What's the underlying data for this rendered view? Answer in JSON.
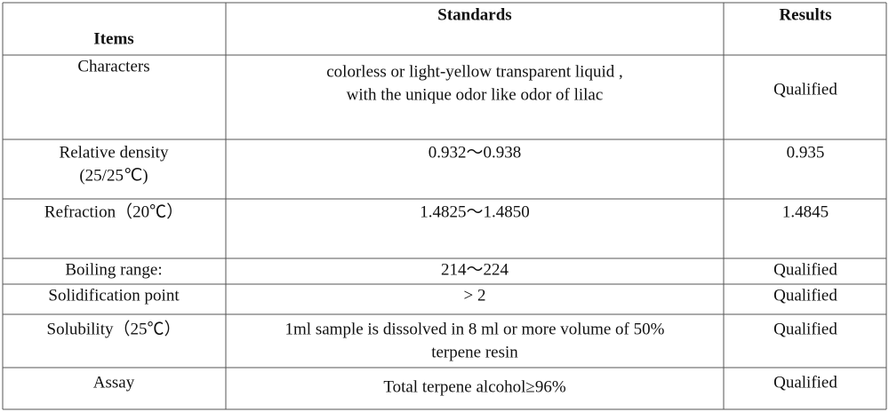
{
  "table": {
    "headers": [
      "Items",
      "Standards",
      "Results"
    ],
    "rows": [
      [
        [
          "Characters"
        ],
        [
          "colorless or light-yellow transparent liquid ,",
          "with the unique odor like odor of lilac"
        ],
        [
          "Qualified"
        ]
      ],
      [
        [
          "Relative density",
          "(25/25℃)"
        ],
        [
          "0.932～0.938"
        ],
        [
          "0.935"
        ]
      ],
      [
        [
          "Refraction（20℃）"
        ],
        [
          "1.4825～1.4850"
        ],
        [
          "1.4845"
        ]
      ],
      [
        [
          "Boiling range:"
        ],
        [
          "214～224"
        ],
        [
          "Qualified"
        ]
      ],
      [
        [
          "Solidification point"
        ],
        [
          "> 2"
        ],
        [
          "Qualified"
        ]
      ],
      [
        [
          "Solubility（25℃）"
        ],
        [
          "1ml sample is dissolved in 8 ml or more volume of 50%",
          "terpene resin"
        ],
        [
          "Qualified"
        ]
      ],
      [
        [
          "Assay"
        ],
        [
          "Total terpene alcohol≥96%"
        ],
        [
          "Qualified"
        ]
      ]
    ]
  }
}
